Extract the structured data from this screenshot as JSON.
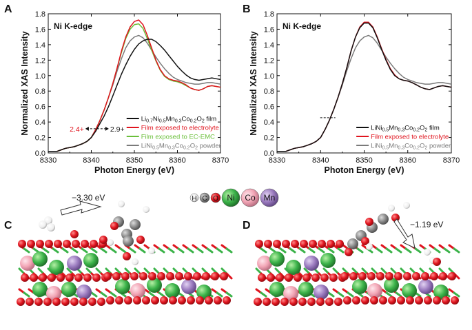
{
  "chart_data": [
    {
      "type": "line",
      "panel": "A",
      "title": "Ni K-edge",
      "xlabel": "Photon Energy (eV)",
      "ylabel": "Normalized XAS Intensity",
      "xlim": [
        8330,
        8370
      ],
      "ylim": [
        0,
        1.8
      ],
      "xticks": [
        "8330",
        "8340",
        "8350",
        "8360",
        "8370"
      ],
      "yticks": [
        "0.0",
        "0.2",
        "0.4",
        "0.6",
        "0.8",
        "1.0",
        "1.2",
        "1.4",
        "1.6",
        "1.8"
      ],
      "legend_location": "lower-right",
      "series": [
        {
          "name": "Li0.7Ni0.5Mn0.3Co0.2O2 film",
          "name_parts": [
            [
              "Li",
              ""
            ],
            [
              "0.7",
              "sub"
            ],
            [
              "Ni",
              ""
            ],
            [
              "0.5",
              "sub"
            ],
            [
              "Mn",
              ""
            ],
            [
              "0.3",
              "sub"
            ],
            [
              "Co",
              ""
            ],
            [
              "0.2",
              "sub"
            ],
            [
              "O",
              ""
            ],
            [
              "2",
              "sub"
            ],
            [
              " film",
              ""
            ]
          ],
          "color": "#111111",
          "x": [
            8330,
            8332,
            8333,
            8334,
            8335,
            8336,
            8337,
            8338,
            8339,
            8340,
            8341,
            8342,
            8343,
            8344,
            8345,
            8346,
            8347,
            8348,
            8349,
            8350,
            8351,
            8352,
            8353,
            8354,
            8355,
            8356,
            8357,
            8358,
            8359,
            8360,
            8361,
            8362,
            8363,
            8364,
            8365,
            8366,
            8367,
            8368,
            8369,
            8370
          ],
          "y": [
            0.02,
            0.02,
            0.04,
            0.06,
            0.07,
            0.08,
            0.1,
            0.12,
            0.15,
            0.2,
            0.28,
            0.38,
            0.48,
            0.6,
            0.74,
            0.88,
            1.02,
            1.14,
            1.25,
            1.34,
            1.41,
            1.45,
            1.47,
            1.47,
            1.44,
            1.39,
            1.33,
            1.26,
            1.19,
            1.12,
            1.06,
            1.01,
            0.97,
            0.95,
            0.94,
            0.95,
            0.96,
            0.97,
            0.96,
            0.95
          ]
        },
        {
          "name": "Film exposed to electrolyte",
          "color": "#e0141e",
          "x": [
            8330,
            8332,
            8333,
            8334,
            8335,
            8336,
            8337,
            8338,
            8339,
            8340,
            8341,
            8342,
            8343,
            8344,
            8345,
            8346,
            8347,
            8348,
            8349,
            8350,
            8351,
            8352,
            8353,
            8354,
            8355,
            8356,
            8357,
            8358,
            8359,
            8360,
            8361,
            8362,
            8363,
            8364,
            8365,
            8366,
            8367,
            8368,
            8369,
            8370
          ],
          "y": [
            0.02,
            0.02,
            0.04,
            0.06,
            0.07,
            0.08,
            0.1,
            0.12,
            0.15,
            0.2,
            0.3,
            0.42,
            0.56,
            0.72,
            0.9,
            1.1,
            1.32,
            1.5,
            1.63,
            1.7,
            1.72,
            1.66,
            1.52,
            1.36,
            1.2,
            1.08,
            1.0,
            0.96,
            0.94,
            0.93,
            0.91,
            0.88,
            0.84,
            0.82,
            0.81,
            0.83,
            0.86,
            0.87,
            0.86,
            0.85
          ]
        },
        {
          "name": "Film exposed to EC-EMC",
          "color": "#6abf3a",
          "x": [
            8330,
            8332,
            8333,
            8334,
            8335,
            8336,
            8337,
            8338,
            8339,
            8340,
            8341,
            8342,
            8343,
            8344,
            8345,
            8346,
            8347,
            8348,
            8349,
            8350,
            8351,
            8352,
            8353,
            8354,
            8355,
            8356,
            8357,
            8358,
            8359,
            8360,
            8361,
            8362,
            8363,
            8364,
            8365,
            8366,
            8367,
            8368,
            8369,
            8370
          ],
          "y": [
            0.02,
            0.02,
            0.04,
            0.06,
            0.07,
            0.08,
            0.1,
            0.12,
            0.15,
            0.2,
            0.3,
            0.42,
            0.56,
            0.72,
            0.9,
            1.1,
            1.3,
            1.48,
            1.6,
            1.66,
            1.67,
            1.61,
            1.48,
            1.33,
            1.19,
            1.07,
            0.99,
            0.95,
            0.93,
            0.92,
            0.9,
            0.87,
            0.84,
            0.82,
            0.81,
            0.83,
            0.86,
            0.87,
            0.86,
            0.85
          ]
        },
        {
          "name": "LiNi0.5Mn0.3Co0.2O2 powder",
          "name_parts": [
            [
              "LiNi",
              ""
            ],
            [
              "0.5",
              "sub"
            ],
            [
              "Mn",
              ""
            ],
            [
              "0.3",
              "sub"
            ],
            [
              "Co",
              ""
            ],
            [
              "0.2",
              "sub"
            ],
            [
              "O",
              ""
            ],
            [
              "2",
              "sub"
            ],
            [
              " powder",
              ""
            ]
          ],
          "color": "#7a7a7a",
          "x": [
            8330,
            8332,
            8333,
            8334,
            8335,
            8336,
            8337,
            8338,
            8339,
            8340,
            8341,
            8342,
            8343,
            8344,
            8345,
            8346,
            8347,
            8348,
            8349,
            8350,
            8351,
            8352,
            8353,
            8354,
            8355,
            8356,
            8357,
            8358,
            8359,
            8360,
            8361,
            8362,
            8363,
            8364,
            8365,
            8366,
            8367,
            8368,
            8369,
            8370
          ],
          "y": [
            0.02,
            0.02,
            0.04,
            0.06,
            0.07,
            0.08,
            0.1,
            0.12,
            0.15,
            0.2,
            0.3,
            0.42,
            0.56,
            0.72,
            0.88,
            1.06,
            1.22,
            1.36,
            1.45,
            1.5,
            1.52,
            1.49,
            1.42,
            1.33,
            1.24,
            1.16,
            1.09,
            1.03,
            0.98,
            0.95,
            0.93,
            0.91,
            0.9,
            0.89,
            0.89,
            0.9,
            0.91,
            0.91,
            0.9,
            0.89
          ]
        }
      ],
      "annotations": [
        {
          "text": "2.4+",
          "color": "#e0141e",
          "x": 8341.5,
          "y": 0.58
        },
        {
          "text": "2.9+",
          "color": "#111111",
          "x": 8341.5,
          "y": 0.58
        }
      ]
    },
    {
      "type": "line",
      "panel": "B",
      "title": "Ni K-edge",
      "xlabel": "Photon Energy (eV)",
      "ylabel": "Normalized XAS Intensity",
      "xlim": [
        8330,
        8370
      ],
      "ylim": [
        0,
        1.8
      ],
      "xticks": [
        "8330",
        "8340",
        "8350",
        "8360",
        "8370"
      ],
      "yticks": [
        "0.0",
        "0.2",
        "0.4",
        "0.6",
        "0.8",
        "1.0",
        "1.2",
        "1.4",
        "1.6",
        "1.8"
      ],
      "legend_location": "lower-right",
      "series": [
        {
          "name": "LiNi0.5Mn0.3Co0.2O2 film",
          "name_parts": [
            [
              "LiNi",
              ""
            ],
            [
              "0.5",
              "sub"
            ],
            [
              "Mn",
              ""
            ],
            [
              "0.3",
              "sub"
            ],
            [
              "Co",
              ""
            ],
            [
              "0.2",
              "sub"
            ],
            [
              "O",
              ""
            ],
            [
              "2",
              "sub"
            ],
            [
              " film",
              ""
            ]
          ],
          "color": "#111111",
          "x": [
            8330,
            8332,
            8333,
            8334,
            8335,
            8336,
            8337,
            8338,
            8339,
            8340,
            8341,
            8342,
            8343,
            8344,
            8345,
            8346,
            8347,
            8348,
            8349,
            8350,
            8351,
            8352,
            8353,
            8354,
            8355,
            8356,
            8357,
            8358,
            8359,
            8360,
            8361,
            8362,
            8363,
            8364,
            8365,
            8366,
            8367,
            8368,
            8369,
            8370
          ],
          "y": [
            0.02,
            0.02,
            0.04,
            0.06,
            0.07,
            0.08,
            0.1,
            0.12,
            0.15,
            0.2,
            0.3,
            0.42,
            0.56,
            0.72,
            0.9,
            1.1,
            1.32,
            1.5,
            1.62,
            1.68,
            1.68,
            1.62,
            1.49,
            1.34,
            1.2,
            1.08,
            1.0,
            0.96,
            0.94,
            0.93,
            0.91,
            0.88,
            0.85,
            0.83,
            0.82,
            0.84,
            0.86,
            0.87,
            0.86,
            0.85
          ]
        },
        {
          "name": "Film exposed to electrolyte",
          "color": "#e0141e",
          "x": [
            8330,
            8332,
            8333,
            8334,
            8335,
            8336,
            8337,
            8338,
            8339,
            8340,
            8341,
            8342,
            8343,
            8344,
            8345,
            8346,
            8347,
            8348,
            8349,
            8350,
            8351,
            8352,
            8353,
            8354,
            8355,
            8356,
            8357,
            8358,
            8359,
            8360,
            8361,
            8362,
            8363,
            8364,
            8365,
            8366,
            8367,
            8368,
            8369,
            8370
          ],
          "y": [
            0.02,
            0.02,
            0.04,
            0.06,
            0.07,
            0.08,
            0.1,
            0.12,
            0.15,
            0.2,
            0.3,
            0.42,
            0.56,
            0.72,
            0.9,
            1.1,
            1.32,
            1.5,
            1.63,
            1.69,
            1.69,
            1.63,
            1.5,
            1.35,
            1.21,
            1.09,
            1.01,
            0.96,
            0.94,
            0.93,
            0.91,
            0.88,
            0.85,
            0.83,
            0.82,
            0.84,
            0.86,
            0.87,
            0.86,
            0.85
          ]
        },
        {
          "name": "LiNi0.5Mn0.3Co0.2O2 powder",
          "name_parts": [
            [
              "LiNi",
              ""
            ],
            [
              "0.5",
              "sub"
            ],
            [
              "Mn",
              ""
            ],
            [
              "0.3",
              "sub"
            ],
            [
              "Co",
              ""
            ],
            [
              "0.2",
              "sub"
            ],
            [
              "O",
              ""
            ],
            [
              "2",
              "sub"
            ],
            [
              " powder",
              ""
            ]
          ],
          "color": "#7a7a7a",
          "x": [
            8330,
            8332,
            8333,
            8334,
            8335,
            8336,
            8337,
            8338,
            8339,
            8340,
            8341,
            8342,
            8343,
            8344,
            8345,
            8346,
            8347,
            8348,
            8349,
            8350,
            8351,
            8352,
            8353,
            8354,
            8355,
            8356,
            8357,
            8358,
            8359,
            8360,
            8361,
            8362,
            8363,
            8364,
            8365,
            8366,
            8367,
            8368,
            8369,
            8370
          ],
          "y": [
            0.02,
            0.02,
            0.04,
            0.06,
            0.07,
            0.08,
            0.1,
            0.12,
            0.15,
            0.2,
            0.3,
            0.42,
            0.56,
            0.72,
            0.88,
            1.06,
            1.22,
            1.36,
            1.45,
            1.5,
            1.52,
            1.49,
            1.42,
            1.33,
            1.24,
            1.16,
            1.09,
            1.03,
            0.98,
            0.95,
            0.93,
            0.91,
            0.9,
            0.89,
            0.89,
            0.9,
            0.91,
            0.91,
            0.9,
            0.89
          ]
        }
      ],
      "annotations": []
    }
  ],
  "atom_legend": [
    {
      "symbol": "H",
      "color": "#f2f2f2"
    },
    {
      "symbol": "C",
      "color": "#8a8a8a"
    },
    {
      "symbol": "O",
      "color": "#e0141e"
    },
    {
      "symbol": "Ni",
      "color": "#3cb34a"
    },
    {
      "symbol": "Co",
      "color": "#f2a5b5"
    },
    {
      "symbol": "Mn",
      "color": "#9b7bbf"
    }
  ],
  "panel_c": {
    "label": "C",
    "energy": "−3.30 eV"
  },
  "panel_d": {
    "label": "D",
    "energy": "−1.19 eV"
  }
}
